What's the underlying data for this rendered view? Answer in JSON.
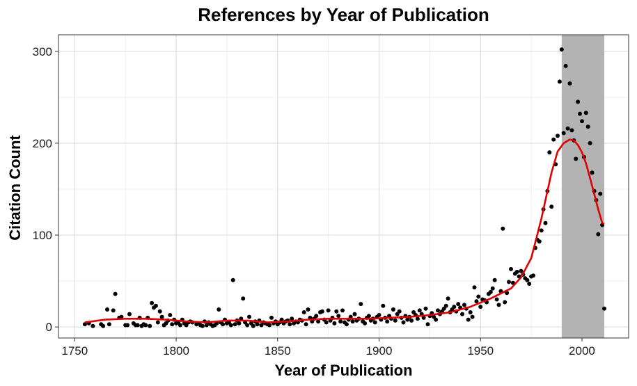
{
  "chart_data": {
    "type": "scatter",
    "title": "References by Year of Publication",
    "xlabel": "Year of Publication",
    "ylabel": "Citation Count",
    "xlim": [
      1742,
      2023
    ],
    "ylim": [
      -12,
      318
    ],
    "x_ticks": [
      1750,
      1800,
      1850,
      1900,
      1950,
      2000
    ],
    "y_ticks": [
      0,
      100,
      200,
      300
    ],
    "grid": true,
    "highlight_band": {
      "x_start": 1990,
      "x_end": 2011,
      "color": "#b3b3b3"
    },
    "point_color": "#000000",
    "trend_color": "#e00000",
    "series": [
      {
        "type": "scatter",
        "points": [
          [
            1755,
            3
          ],
          [
            1757,
            4
          ],
          [
            1759,
            1
          ],
          [
            1763,
            3
          ],
          [
            1764,
            1
          ],
          [
            1766,
            19
          ],
          [
            1767,
            3
          ],
          [
            1769,
            18
          ],
          [
            1770,
            36
          ],
          [
            1772,
            10
          ],
          [
            1773,
            11
          ],
          [
            1775,
            2
          ],
          [
            1776,
            2
          ],
          [
            1777,
            14
          ],
          [
            1779,
            4
          ],
          [
            1780,
            2
          ],
          [
            1781,
            2
          ],
          [
            1782,
            10
          ],
          [
            1783,
            1
          ],
          [
            1784,
            3
          ],
          [
            1785,
            2
          ],
          [
            1786,
            10
          ],
          [
            1787,
            1
          ],
          [
            1788,
            26
          ],
          [
            1789,
            21
          ],
          [
            1790,
            23
          ],
          [
            1791,
            5
          ],
          [
            1792,
            17
          ],
          [
            1793,
            11
          ],
          [
            1794,
            2
          ],
          [
            1795,
            4
          ],
          [
            1796,
            7
          ],
          [
            1797,
            13
          ],
          [
            1798,
            3
          ],
          [
            1799,
            8
          ],
          [
            1800,
            4
          ],
          [
            1801,
            5
          ],
          [
            1802,
            2
          ],
          [
            1803,
            8
          ],
          [
            1804,
            4
          ],
          [
            1805,
            2
          ],
          [
            1806,
            5
          ],
          [
            1807,
            6
          ],
          [
            1808,
            5
          ],
          [
            1810,
            3
          ],
          [
            1811,
            4
          ],
          [
            1812,
            2
          ],
          [
            1813,
            1
          ],
          [
            1814,
            6
          ],
          [
            1815,
            2
          ],
          [
            1816,
            5
          ],
          [
            1817,
            3
          ],
          [
            1818,
            1
          ],
          [
            1819,
            2
          ],
          [
            1820,
            4
          ],
          [
            1821,
            19
          ],
          [
            1822,
            5
          ],
          [
            1823,
            3
          ],
          [
            1824,
            8
          ],
          [
            1825,
            4
          ],
          [
            1826,
            5
          ],
          [
            1827,
            2
          ],
          [
            1828,
            51
          ],
          [
            1829,
            3
          ],
          [
            1830,
            7
          ],
          [
            1831,
            4
          ],
          [
            1832,
            9
          ],
          [
            1833,
            31
          ],
          [
            1834,
            5
          ],
          [
            1835,
            2
          ],
          [
            1836,
            11
          ],
          [
            1837,
            4
          ],
          [
            1838,
            1
          ],
          [
            1839,
            6
          ],
          [
            1840,
            3
          ],
          [
            1841,
            7
          ],
          [
            1842,
            2
          ],
          [
            1843,
            5
          ],
          [
            1844,
            4
          ],
          [
            1845,
            3
          ],
          [
            1846,
            2
          ],
          [
            1847,
            10
          ],
          [
            1848,
            4
          ],
          [
            1849,
            6
          ],
          [
            1850,
            3
          ],
          [
            1851,
            5
          ],
          [
            1852,
            8
          ],
          [
            1853,
            4
          ],
          [
            1854,
            6
          ],
          [
            1855,
            7
          ],
          [
            1856,
            3
          ],
          [
            1857,
            9
          ],
          [
            1858,
            4
          ],
          [
            1859,
            6
          ],
          [
            1860,
            5
          ],
          [
            1861,
            8
          ],
          [
            1862,
            7
          ],
          [
            1863,
            16
          ],
          [
            1864,
            3
          ],
          [
            1865,
            19
          ],
          [
            1866,
            10
          ],
          [
            1867,
            6
          ],
          [
            1868,
            9
          ],
          [
            1869,
            12
          ],
          [
            1870,
            6
          ],
          [
            1871,
            16
          ],
          [
            1872,
            17
          ],
          [
            1873,
            8
          ],
          [
            1874,
            5
          ],
          [
            1875,
            18
          ],
          [
            1876,
            7
          ],
          [
            1877,
            10
          ],
          [
            1878,
            4
          ],
          [
            1879,
            17
          ],
          [
            1880,
            12
          ],
          [
            1881,
            6
          ],
          [
            1882,
            18
          ],
          [
            1883,
            5
          ],
          [
            1884,
            3
          ],
          [
            1885,
            8
          ],
          [
            1886,
            11
          ],
          [
            1887,
            6
          ],
          [
            1888,
            14
          ],
          [
            1889,
            7
          ],
          [
            1890,
            9
          ],
          [
            1891,
            25
          ],
          [
            1892,
            6
          ],
          [
            1893,
            4
          ],
          [
            1894,
            10
          ],
          [
            1895,
            12
          ],
          [
            1896,
            7
          ],
          [
            1897,
            9
          ],
          [
            1898,
            5
          ],
          [
            1899,
            11
          ],
          [
            1900,
            13
          ],
          [
            1901,
            8
          ],
          [
            1902,
            23
          ],
          [
            1903,
            10
          ],
          [
            1904,
            6
          ],
          [
            1905,
            12
          ],
          [
            1906,
            9
          ],
          [
            1907,
            19
          ],
          [
            1908,
            7
          ],
          [
            1909,
            14
          ],
          [
            1910,
            17
          ],
          [
            1911,
            10
          ],
          [
            1912,
            5
          ],
          [
            1913,
            12
          ],
          [
            1914,
            8
          ],
          [
            1915,
            11
          ],
          [
            1916,
            7
          ],
          [
            1917,
            16
          ],
          [
            1918,
            13
          ],
          [
            1919,
            9
          ],
          [
            1920,
            18
          ],
          [
            1921,
            14
          ],
          [
            1922,
            10
          ],
          [
            1923,
            20
          ],
          [
            1924,
            3
          ],
          [
            1925,
            12
          ],
          [
            1926,
            15
          ],
          [
            1927,
            11
          ],
          [
            1928,
            8
          ],
          [
            1929,
            18
          ],
          [
            1930,
            14
          ],
          [
            1931,
            17
          ],
          [
            1932,
            20
          ],
          [
            1933,
            23
          ],
          [
            1934,
            31
          ],
          [
            1935,
            16
          ],
          [
            1936,
            19
          ],
          [
            1937,
            22
          ],
          [
            1938,
            17
          ],
          [
            1939,
            25
          ],
          [
            1940,
            21
          ],
          [
            1941,
            14
          ],
          [
            1942,
            24
          ],
          [
            1943,
            20
          ],
          [
            1944,
            8
          ],
          [
            1945,
            16
          ],
          [
            1946,
            11
          ],
          [
            1947,
            43
          ],
          [
            1948,
            28
          ],
          [
            1949,
            33
          ],
          [
            1950,
            22
          ],
          [
            1951,
            30
          ],
          [
            1952,
            29
          ],
          [
            1953,
            27
          ],
          [
            1954,
            36
          ],
          [
            1955,
            38
          ],
          [
            1956,
            42
          ],
          [
            1957,
            51
          ],
          [
            1958,
            30
          ],
          [
            1959,
            24
          ],
          [
            1960,
            39
          ],
          [
            1961,
            107
          ],
          [
            1962,
            27
          ],
          [
            1963,
            37
          ],
          [
            1964,
            49
          ],
          [
            1965,
            63
          ],
          [
            1966,
            48
          ],
          [
            1967,
            58
          ],
          [
            1968,
            60
          ],
          [
            1969,
            55
          ],
          [
            1970,
            61
          ],
          [
            1971,
            57
          ],
          [
            1972,
            53
          ],
          [
            1973,
            51
          ],
          [
            1974,
            47
          ],
          [
            1975,
            55
          ],
          [
            1976,
            56
          ],
          [
            1977,
            86
          ],
          [
            1978,
            95
          ],
          [
            1979,
            93
          ],
          [
            1980,
            105
          ],
          [
            1981,
            128
          ],
          [
            1982,
            113
          ],
          [
            1983,
            148
          ],
          [
            1984,
            190
          ],
          [
            1985,
            131
          ],
          [
            1986,
            204
          ],
          [
            1987,
            177
          ],
          [
            1988,
            208
          ],
          [
            1989,
            267
          ],
          [
            1990,
            302
          ],
          [
            1991,
            211
          ],
          [
            1992,
            284
          ],
          [
            1993,
            216
          ],
          [
            1994,
            265
          ],
          [
            1995,
            214
          ],
          [
            1996,
            203
          ],
          [
            1997,
            183
          ],
          [
            1998,
            245
          ],
          [
            1999,
            232
          ],
          [
            2000,
            224
          ],
          [
            2001,
            185
          ],
          [
            2002,
            233
          ],
          [
            2003,
            218
          ],
          [
            2004,
            200
          ],
          [
            2005,
            168
          ],
          [
            2006,
            148
          ],
          [
            2007,
            138
          ],
          [
            2008,
            101
          ],
          [
            2009,
            145
          ],
          [
            2010,
            111
          ],
          [
            2011,
            20
          ]
        ]
      },
      {
        "type": "line",
        "name": "",
        "points": [
          [
            1755,
            5
          ],
          [
            1765,
            8
          ],
          [
            1775,
            9
          ],
          [
            1785,
            9
          ],
          [
            1795,
            8
          ],
          [
            1805,
            6
          ],
          [
            1815,
            5
          ],
          [
            1825,
            7
          ],
          [
            1835,
            7
          ],
          [
            1845,
            5
          ],
          [
            1855,
            6
          ],
          [
            1865,
            8
          ],
          [
            1875,
            9
          ],
          [
            1885,
            9
          ],
          [
            1895,
            9
          ],
          [
            1905,
            10
          ],
          [
            1915,
            11
          ],
          [
            1925,
            13
          ],
          [
            1935,
            16
          ],
          [
            1945,
            22
          ],
          [
            1955,
            31
          ],
          [
            1965,
            42
          ],
          [
            1970,
            54
          ],
          [
            1975,
            75
          ],
          [
            1980,
            118
          ],
          [
            1985,
            168
          ],
          [
            1988,
            191
          ],
          [
            1991,
            200
          ],
          [
            1994,
            204
          ],
          [
            1996,
            203
          ],
          [
            1998,
            198
          ],
          [
            2000,
            190
          ],
          [
            2002,
            178
          ],
          [
            2004,
            162
          ],
          [
            2006,
            145
          ],
          [
            2008,
            128
          ],
          [
            2010,
            113
          ],
          [
            2011,
            112
          ]
        ]
      }
    ]
  }
}
